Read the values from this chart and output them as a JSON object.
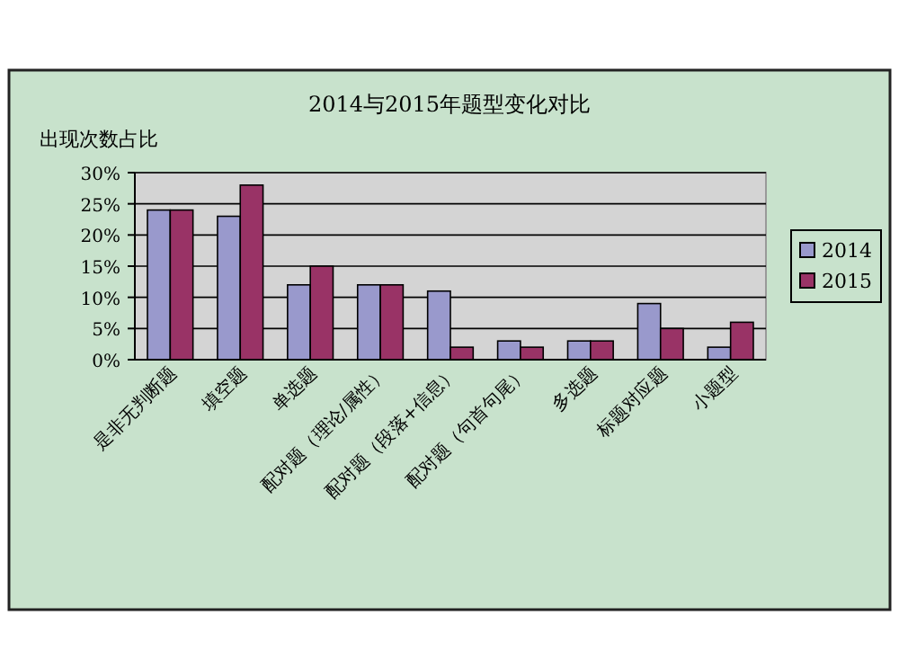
{
  "chart_data": {
    "type": "bar",
    "title": "2014与2015年题型变化对比",
    "ylabel": "出现次数占比",
    "categories": [
      "是非无判断题",
      "填空题",
      "单选题",
      "配对题（理论/属性）",
      "配对题（段落+信息）",
      "配对题（句首句尾）",
      "多选题",
      "标题对应题",
      "小题型"
    ],
    "series": [
      {
        "name": "2014",
        "color": "#9999cc",
        "values": [
          24,
          23,
          12,
          12,
          11,
          3,
          3,
          9,
          2
        ]
      },
      {
        "name": "2015",
        "color": "#993366",
        "values": [
          24,
          28,
          15,
          12,
          2,
          2,
          3,
          5,
          6
        ]
      }
    ],
    "ylim": [
      0,
      30
    ],
    "yticks": [
      {
        "value": 0,
        "label": "0%"
      },
      {
        "value": 5,
        "label": "5%"
      },
      {
        "value": 10,
        "label": "10%"
      },
      {
        "value": 15,
        "label": "15%"
      },
      {
        "value": 20,
        "label": "20%"
      },
      {
        "value": 25,
        "label": "25%"
      },
      {
        "value": 30,
        "label": "30%"
      }
    ],
    "grid": "y",
    "legend": "right"
  }
}
